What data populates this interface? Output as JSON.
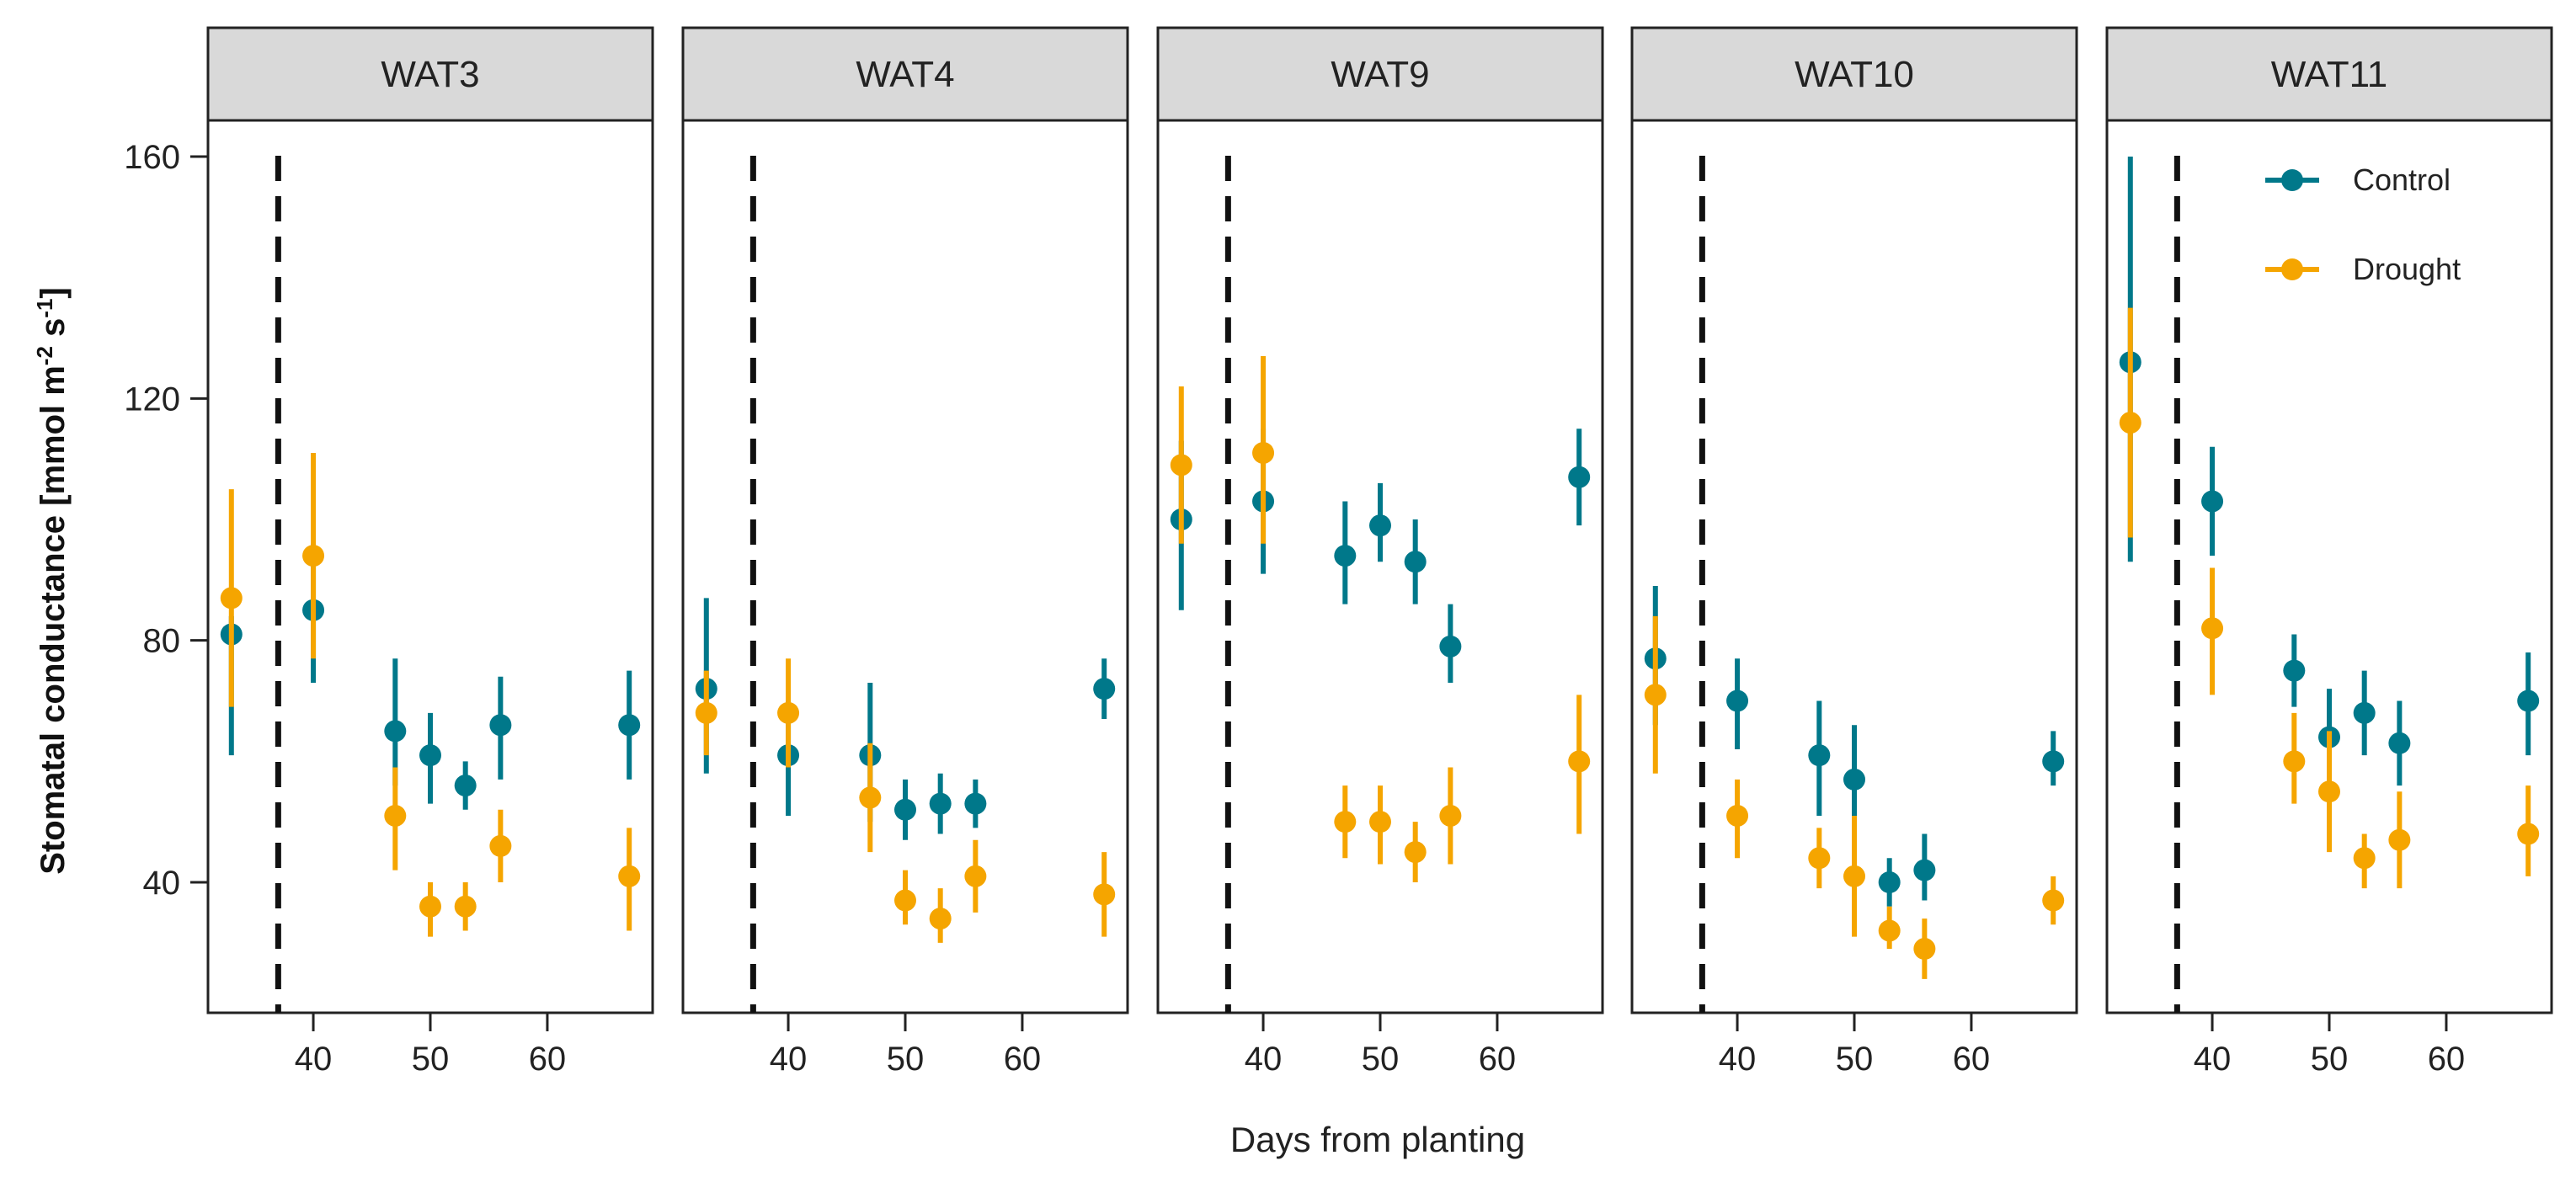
{
  "chart_data": {
    "type": "scatter",
    "subtype": "faceted point with error bars",
    "xlabel": "Days from planting",
    "ylabel_parts": {
      "main": "Stomatal conductance [mmol m",
      "sup1": "-2",
      "mid": " s",
      "sup2": "-1",
      "end": "]"
    },
    "ylim": [
      18,
      166
    ],
    "yticks": [
      40,
      80,
      120,
      160
    ],
    "xticks": [
      40,
      50,
      60
    ],
    "xlim": [
      31,
      69
    ],
    "vline_x": 37,
    "legend": {
      "position": "top-right (in WAT11 panel)",
      "entries": [
        {
          "name": "Control",
          "color": "#00788a"
        },
        {
          "name": "Drought",
          "color": "#f5a500"
        }
      ]
    },
    "panels": [
      {
        "title": "WAT3",
        "series": [
          {
            "name": "Control",
            "points": [
              {
                "x": 33,
                "y": 81,
                "lo": 61,
                "hi": 84
              },
              {
                "x": 40,
                "y": 85,
                "lo": 73,
                "hi": 96
              },
              {
                "x": 47,
                "y": 65,
                "lo": 56,
                "hi": 77
              },
              {
                "x": 50,
                "y": 61,
                "lo": 53,
                "hi": 68
              },
              {
                "x": 53,
                "y": 56,
                "lo": 52,
                "hi": 60
              },
              {
                "x": 56,
                "y": 66,
                "lo": 57,
                "hi": 74
              },
              {
                "x": 67,
                "y": 66,
                "lo": 57,
                "hi": 75
              }
            ]
          },
          {
            "name": "Drought",
            "points": [
              {
                "x": 33,
                "y": 87,
                "lo": 69,
                "hi": 105
              },
              {
                "x": 40,
                "y": 94,
                "lo": 77,
                "hi": 111
              },
              {
                "x": 47,
                "y": 51,
                "lo": 42,
                "hi": 59
              },
              {
                "x": 50,
                "y": 36,
                "lo": 31,
                "hi": 40
              },
              {
                "x": 53,
                "y": 36,
                "lo": 32,
                "hi": 40
              },
              {
                "x": 56,
                "y": 46,
                "lo": 40,
                "hi": 52
              },
              {
                "x": 67,
                "y": 41,
                "lo": 32,
                "hi": 49
              }
            ]
          }
        ]
      },
      {
        "title": "WAT4",
        "series": [
          {
            "name": "Control",
            "points": [
              {
                "x": 33,
                "y": 72,
                "lo": 58,
                "hi": 87
              },
              {
                "x": 40,
                "y": 61,
                "lo": 51,
                "hi": 70
              },
              {
                "x": 47,
                "y": 61,
                "lo": 50,
                "hi": 73
              },
              {
                "x": 50,
                "y": 52,
                "lo": 47,
                "hi": 57
              },
              {
                "x": 53,
                "y": 53,
                "lo": 48,
                "hi": 58
              },
              {
                "x": 56,
                "y": 53,
                "lo": 49,
                "hi": 57
              },
              {
                "x": 67,
                "y": 72,
                "lo": 67,
                "hi": 77
              }
            ]
          },
          {
            "name": "Drought",
            "points": [
              {
                "x": 33,
                "y": 68,
                "lo": 61,
                "hi": 75
              },
              {
                "x": 40,
                "y": 68,
                "lo": 59,
                "hi": 77
              },
              {
                "x": 47,
                "y": 54,
                "lo": 45,
                "hi": 63
              },
              {
                "x": 50,
                "y": 37,
                "lo": 33,
                "hi": 42
              },
              {
                "x": 53,
                "y": 34,
                "lo": 30,
                "hi": 39
              },
              {
                "x": 56,
                "y": 41,
                "lo": 35,
                "hi": 47
              },
              {
                "x": 67,
                "y": 38,
                "lo": 31,
                "hi": 45
              }
            ]
          }
        ]
      },
      {
        "title": "WAT9",
        "series": [
          {
            "name": "Control",
            "points": [
              {
                "x": 33,
                "y": 100,
                "lo": 85,
                "hi": 113
              },
              {
                "x": 40,
                "y": 103,
                "lo": 91,
                "hi": 115
              },
              {
                "x": 47,
                "y": 94,
                "lo": 86,
                "hi": 103
              },
              {
                "x": 50,
                "y": 99,
                "lo": 93,
                "hi": 106
              },
              {
                "x": 53,
                "y": 93,
                "lo": 86,
                "hi": 100
              },
              {
                "x": 56,
                "y": 79,
                "lo": 73,
                "hi": 86
              },
              {
                "x": 67,
                "y": 107,
                "lo": 99,
                "hi": 115
              }
            ]
          },
          {
            "name": "Drought",
            "points": [
              {
                "x": 33,
                "y": 109,
                "lo": 96,
                "hi": 122
              },
              {
                "x": 40,
                "y": 111,
                "lo": 96,
                "hi": 127
              },
              {
                "x": 47,
                "y": 50,
                "lo": 44,
                "hi": 56
              },
              {
                "x": 50,
                "y": 50,
                "lo": 43,
                "hi": 56
              },
              {
                "x": 53,
                "y": 45,
                "lo": 40,
                "hi": 50
              },
              {
                "x": 56,
                "y": 51,
                "lo": 43,
                "hi": 59
              },
              {
                "x": 67,
                "y": 60,
                "lo": 48,
                "hi": 71
              }
            ]
          }
        ]
      },
      {
        "title": "WAT10",
        "series": [
          {
            "name": "Control",
            "points": [
              {
                "x": 33,
                "y": 77,
                "lo": 66,
                "hi": 89
              },
              {
                "x": 40,
                "y": 70,
                "lo": 62,
                "hi": 77
              },
              {
                "x": 47,
                "y": 61,
                "lo": 51,
                "hi": 70
              },
              {
                "x": 50,
                "y": 57,
                "lo": 49,
                "hi": 66
              },
              {
                "x": 53,
                "y": 40,
                "lo": 36,
                "hi": 44
              },
              {
                "x": 56,
                "y": 42,
                "lo": 37,
                "hi": 48
              },
              {
                "x": 67,
                "y": 60,
                "lo": 56,
                "hi": 65
              }
            ]
          },
          {
            "name": "Drought",
            "points": [
              {
                "x": 33,
                "y": 71,
                "lo": 58,
                "hi": 84
              },
              {
                "x": 40,
                "y": 51,
                "lo": 44,
                "hi": 57
              },
              {
                "x": 47,
                "y": 44,
                "lo": 39,
                "hi": 49
              },
              {
                "x": 50,
                "y": 41,
                "lo": 31,
                "hi": 51
              },
              {
                "x": 53,
                "y": 32,
                "lo": 29,
                "hi": 36
              },
              {
                "x": 56,
                "y": 29,
                "lo": 24,
                "hi": 34
              },
              {
                "x": 67,
                "y": 37,
                "lo": 33,
                "hi": 41
              }
            ]
          }
        ]
      },
      {
        "title": "WAT11",
        "series": [
          {
            "name": "Control",
            "points": [
              {
                "x": 33,
                "y": 126,
                "lo": 93,
                "hi": 160
              },
              {
                "x": 40,
                "y": 103,
                "lo": 94,
                "hi": 112
              },
              {
                "x": 47,
                "y": 75,
                "lo": 69,
                "hi": 81
              },
              {
                "x": 50,
                "y": 64,
                "lo": 56,
                "hi": 72
              },
              {
                "x": 53,
                "y": 68,
                "lo": 61,
                "hi": 75
              },
              {
                "x": 56,
                "y": 63,
                "lo": 56,
                "hi": 70
              },
              {
                "x": 67,
                "y": 70,
                "lo": 61,
                "hi": 78
              }
            ]
          },
          {
            "name": "Drought",
            "points": [
              {
                "x": 33,
                "y": 116,
                "lo": 97,
                "hi": 135
              },
              {
                "x": 40,
                "y": 82,
                "lo": 71,
                "hi": 92
              },
              {
                "x": 47,
                "y": 60,
                "lo": 53,
                "hi": 68
              },
              {
                "x": 50,
                "y": 55,
                "lo": 45,
                "hi": 65
              },
              {
                "x": 53,
                "y": 44,
                "lo": 39,
                "hi": 48
              },
              {
                "x": 56,
                "y": 47,
                "lo": 39,
                "hi": 55
              },
              {
                "x": 67,
                "y": 48,
                "lo": 41,
                "hi": 56
              }
            ]
          }
        ]
      }
    ]
  }
}
